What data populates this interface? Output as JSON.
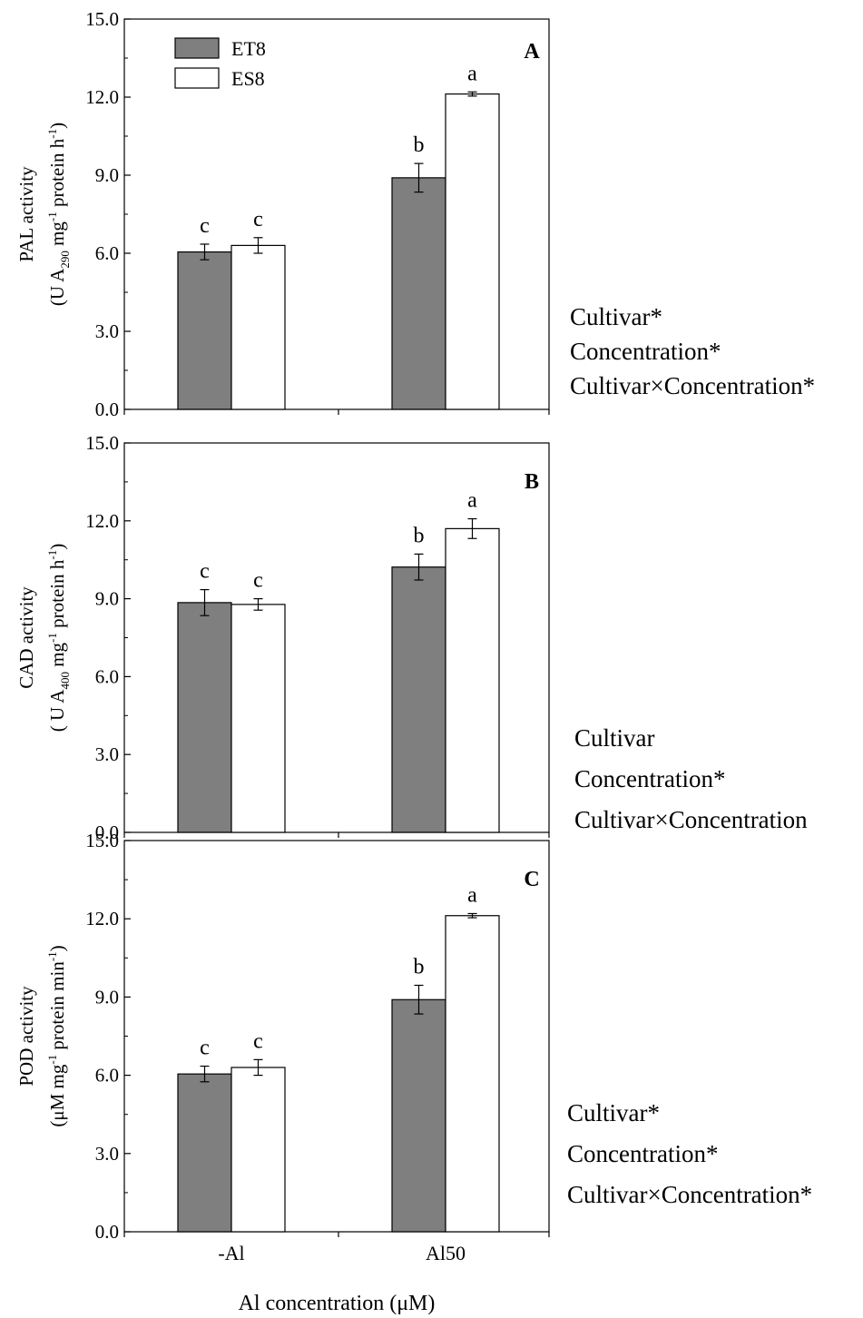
{
  "figure": {
    "x_axis_title": "Al concentration (μM)",
    "legend": {
      "position": "top-left"
    },
    "colors": {
      "ET8": "#7f7f7f",
      "ES8": "#ffffff",
      "axis": "#000000"
    }
  },
  "chart_data": [
    {
      "type": "bar",
      "panel_label": "A",
      "ylabel_line1": "PAL activity",
      "ylabel_line2_parts": [
        "(U A",
        "290",
        " mg",
        "-1",
        " protein h",
        "-1",
        ")"
      ],
      "ylim": [
        0,
        15
      ],
      "yticks": [
        "0.0",
        "3.0",
        "6.0",
        "9.0",
        "12.0",
        "15.0"
      ],
      "categories": [
        "-Al",
        "Al50"
      ],
      "series": [
        {
          "name": "ET8",
          "values": [
            6.05,
            8.9
          ],
          "errors": [
            0.3,
            0.55
          ],
          "letters": [
            "c",
            "b"
          ]
        },
        {
          "name": "ES8",
          "values": [
            6.3,
            12.12
          ],
          "errors": [
            0.3,
            0.08
          ],
          "letters": [
            "c",
            "a"
          ]
        }
      ],
      "anova": [
        "Cultivar*",
        "Concentration*",
        "Cultivar×Concentration*"
      ]
    },
    {
      "type": "bar",
      "panel_label": "B",
      "ylabel_line1": "CAD activity",
      "ylabel_line2_parts": [
        "( U A",
        "400",
        " mg",
        "-1",
        " protein h",
        "-1",
        ")"
      ],
      "ylim": [
        0,
        15
      ],
      "yticks": [
        "0.0",
        "3.0",
        "6.0",
        "9.0",
        "12.0",
        "15.0"
      ],
      "categories": [
        "-Al",
        "Al50"
      ],
      "series": [
        {
          "name": "ET8",
          "values": [
            8.85,
            10.22
          ],
          "errors": [
            0.5,
            0.5
          ],
          "letters": [
            "c",
            "b"
          ]
        },
        {
          "name": "ES8",
          "values": [
            8.78,
            11.7
          ],
          "errors": [
            0.22,
            0.38
          ],
          "letters": [
            "c",
            "a"
          ]
        }
      ],
      "anova": [
        "Cultivar",
        "Concentration*",
        "Cultivar×Concentration"
      ]
    },
    {
      "type": "bar",
      "panel_label": "C",
      "ylabel_line1": "POD activity",
      "ylabel_line2_parts": [
        "(μM mg",
        "-1",
        " protein min",
        "-1",
        ")"
      ],
      "ylim": [
        0,
        15
      ],
      "yticks": [
        "0.0",
        "3.0",
        "6.0",
        "9.0",
        "12.0",
        "15.0"
      ],
      "categories": [
        "-Al",
        "Al50"
      ],
      "series": [
        {
          "name": "ET8",
          "values": [
            6.05,
            8.9
          ],
          "errors": [
            0.3,
            0.55
          ],
          "letters": [
            "c",
            "b"
          ]
        },
        {
          "name": "ES8",
          "values": [
            6.3,
            12.12
          ],
          "errors": [
            0.3,
            0.08
          ],
          "letters": [
            "c",
            "a"
          ]
        }
      ],
      "anova": [
        "Cultivar*",
        "Concentration*",
        "Cultivar×Concentration*"
      ]
    }
  ]
}
